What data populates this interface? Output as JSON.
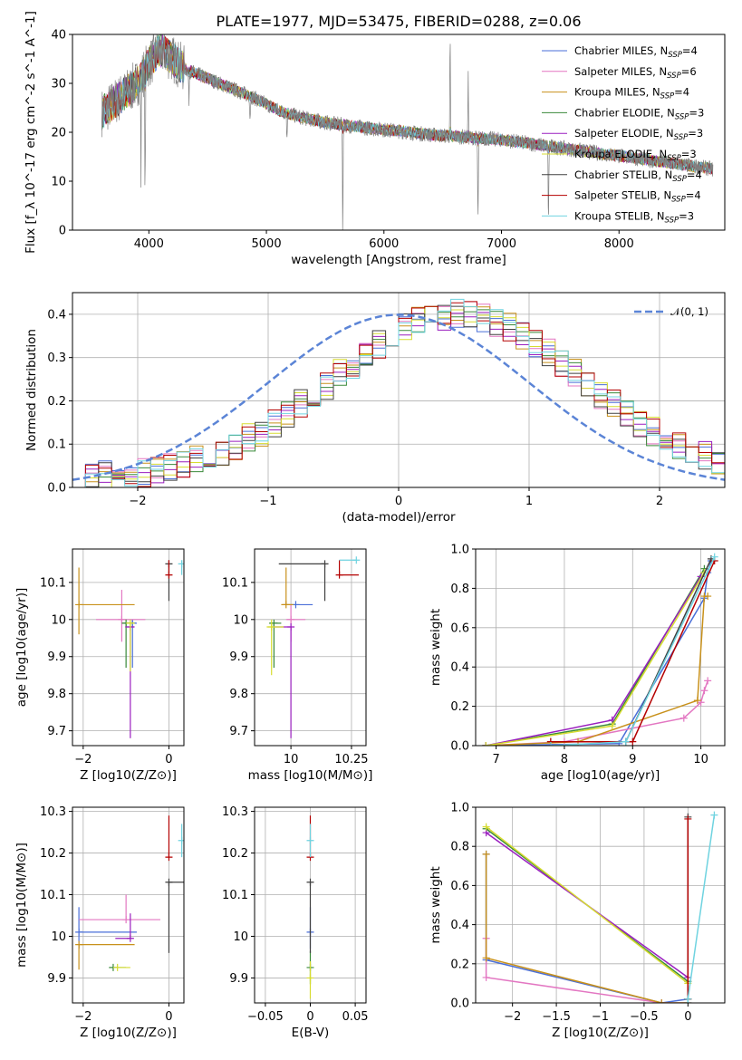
{
  "figure": {
    "title": "PLATE=1977, MJD=53475, FIBERID=0288, z=0.06"
  },
  "series": [
    {
      "name": "Chabrier MILES",
      "nssp": "4",
      "color": "#4a6fd8"
    },
    {
      "name": "Salpeter MILES",
      "nssp": "6",
      "color": "#e377c2"
    },
    {
      "name": "Kroupa MILES",
      "nssp": "4",
      "color": "#c8911b"
    },
    {
      "name": "Chabrier ELODIE",
      "nssp": "3",
      "color": "#3a8a3a"
    },
    {
      "name": "Salpeter ELODIE",
      "nssp": "3",
      "color": "#9a1fbf"
    },
    {
      "name": "Kroupa ELODIE",
      "nssp": "3",
      "color": "#d7dc30"
    },
    {
      "name": "Chabrier STELIB",
      "nssp": "4",
      "color": "#404040"
    },
    {
      "name": "Salpeter STELIB",
      "nssp": "4",
      "color": "#b40000"
    },
    {
      "name": "Kroupa STELIB",
      "nssp": "3",
      "color": "#6fd3e0"
    }
  ],
  "chart_data": [
    {
      "id": "spectrum",
      "type": "line",
      "xlabel": "wavelength [Angstrom, rest frame]",
      "ylabel": "Flux [f_λ 10^-17 erg cm^-2 s^-1 A^-1]",
      "xlim": [
        3350,
        8900
      ],
      "ylim": [
        0,
        40
      ],
      "xticks": [
        4000,
        5000,
        6000,
        7000,
        8000
      ],
      "yticks": [
        0,
        10,
        20,
        30,
        40
      ],
      "grid": false,
      "legend": "top-right",
      "data_color": "#808080",
      "continuum": [
        [
          3600,
          24
        ],
        [
          3750,
          27
        ],
        [
          3900,
          30
        ],
        [
          4000,
          34
        ],
        [
          4100,
          37
        ],
        [
          4200,
          35
        ],
        [
          4300,
          33
        ],
        [
          4500,
          31
        ],
        [
          4700,
          29
        ],
        [
          4900,
          27
        ],
        [
          5100,
          24.5
        ],
        [
          5300,
          23
        ],
        [
          5500,
          22
        ],
        [
          5800,
          21
        ],
        [
          6100,
          20.3
        ],
        [
          6400,
          19.5
        ],
        [
          6700,
          19
        ],
        [
          7000,
          18.5
        ],
        [
          7300,
          17.5
        ],
        [
          7600,
          16.5
        ],
        [
          7900,
          15.5
        ],
        [
          8200,
          14.5
        ],
        [
          8500,
          13.5
        ],
        [
          8800,
          12.5
        ]
      ],
      "features": [
        [
          3933,
          -20
        ],
        [
          3968,
          -28
        ],
        [
          4101,
          -8
        ],
        [
          4340,
          -7
        ],
        [
          4861,
          -5
        ],
        [
          5175,
          -6
        ],
        [
          5650,
          -24
        ],
        [
          6563,
          22
        ],
        [
          6717,
          12
        ],
        [
          6800,
          -20
        ],
        [
          7400,
          -18
        ]
      ]
    },
    {
      "id": "residuals",
      "type": "bar",
      "xlabel": "(data-model)/error",
      "ylabel": "Normed distribution",
      "xlim": [
        -2.5,
        2.5
      ],
      "ylim": [
        0,
        0.45
      ],
      "xticks": [
        -2,
        -1,
        0,
        1,
        2
      ],
      "yticks": [
        0.0,
        0.1,
        0.2,
        0.3,
        0.4
      ],
      "grid": true,
      "legend": "top-right",
      "gaussian_label": "𝒩(0, 1)",
      "gaussian_color": "#5b84d6",
      "bin_width": 0.1
    },
    {
      "id": "age-vs-Z",
      "type": "scatter",
      "xlabel": "Z [log10(Z/Z⊙)]",
      "ylabel": "age [log10(age/yr)]",
      "xlim": [
        -2.25,
        0.35
      ],
      "ylim": [
        9.66,
        10.19
      ],
      "xticks": [
        -2,
        0
      ],
      "yticks": [
        9.7,
        9.8,
        9.9,
        10.0,
        10.1
      ],
      "grid": true,
      "points": [
        {
          "series": 0,
          "x": -0.85,
          "y": 9.99,
          "ex": [
            0.15,
            0.1
          ],
          "ey": [
            0.12,
            0.01
          ]
        },
        {
          "series": 1,
          "x": -1.1,
          "y": 10.0,
          "ex": [
            0.6,
            0.55
          ],
          "ey": [
            0.06,
            0.08
          ]
        },
        {
          "series": 2,
          "x": -2.1,
          "y": 10.04,
          "ex": [
            0.02,
            1.3
          ],
          "ey": [
            0.08,
            0.1
          ]
        },
        {
          "series": 3,
          "x": -1.0,
          "y": 9.99,
          "ex": [
            0.1,
            0.2
          ],
          "ey": [
            0.12,
            0.0
          ]
        },
        {
          "series": 4,
          "x": -0.9,
          "y": 9.98,
          "ex": [
            0.12,
            0.1
          ],
          "ey": [
            0.3,
            0.0
          ]
        },
        {
          "series": 5,
          "x": -0.9,
          "y": 9.99,
          "ex": [
            0.1,
            0.1
          ],
          "ey": [
            0.13,
            0.0
          ]
        },
        {
          "series": 6,
          "x": 0.0,
          "y": 10.15,
          "ex": [
            0.0,
            0.0
          ],
          "ey": [
            0.1,
            0.0
          ]
        },
        {
          "series": 7,
          "x": 0.0,
          "y": 10.12,
          "ex": [
            0.0,
            0.02
          ],
          "ey": [
            0.0,
            0.04
          ]
        },
        {
          "series": 8,
          "x": 0.3,
          "y": 10.15,
          "ex": [
            0.02,
            0.02
          ],
          "ey": [
            0.03,
            0.01
          ]
        }
      ]
    },
    {
      "id": "age-vs-mass",
      "type": "scatter",
      "xlabel": "mass [log10(M/M⊙)]",
      "ylabel": "",
      "xlim": [
        9.85,
        10.31
      ],
      "ylim": [
        9.66,
        10.19
      ],
      "xticks": [
        10.0,
        10.25
      ],
      "yticks": [
        9.7,
        9.8,
        9.9,
        10.0,
        10.1
      ],
      "grid": true,
      "points": [
        {
          "series": 0,
          "x": 10.02,
          "y": 10.04,
          "ex": [
            0.05,
            0.07
          ],
          "ey": [
            0.0,
            0.0
          ]
        },
        {
          "series": 1,
          "x": 10.0,
          "y": 10.0,
          "ex": [
            0.02,
            0.06
          ],
          "ey": [
            0.06,
            0.04
          ]
        },
        {
          "series": 2,
          "x": 9.98,
          "y": 10.04,
          "ex": [
            0.02,
            0.03
          ],
          "ey": [
            0.0,
            0.1
          ]
        },
        {
          "series": 3,
          "x": 9.93,
          "y": 9.99,
          "ex": [
            0.02,
            0.03
          ],
          "ey": [
            0.12,
            0.0
          ]
        },
        {
          "series": 4,
          "x": 10.0,
          "y": 9.98,
          "ex": [
            0.07,
            0.0
          ],
          "ey": [
            0.3,
            0.0
          ]
        },
        {
          "series": 5,
          "x": 9.92,
          "y": 9.98,
          "ex": [
            0.02,
            0.05
          ],
          "ey": [
            0.13,
            0.02
          ]
        },
        {
          "series": 6,
          "x": 10.14,
          "y": 10.15,
          "ex": [
            0.19,
            0.0
          ],
          "ey": [
            0.1,
            0.0
          ]
        },
        {
          "series": 7,
          "x": 10.2,
          "y": 10.12,
          "ex": [
            0.0,
            0.08
          ],
          "ey": [
            0.0,
            0.04
          ]
        },
        {
          "series": 8,
          "x": 10.27,
          "y": 10.16,
          "ex": [
            0.07,
            0.0
          ],
          "ey": [
            0.0,
            0.0
          ]
        }
      ]
    },
    {
      "id": "weight-vs-age",
      "type": "line",
      "xlabel": "age [log10(age/yr)]",
      "ylabel": "mass weight",
      "xlim": [
        6.7,
        10.35
      ],
      "ylim": [
        0,
        1.0
      ],
      "xticks": [
        7,
        8,
        9,
        10
      ],
      "yticks": [
        0.0,
        0.2,
        0.4,
        0.6,
        0.8,
        1.0
      ],
      "grid": true,
      "lines": [
        {
          "series": 0,
          "x": [
            6.85,
            8.8,
            10.05,
            10.1,
            10.15
          ],
          "y": [
            0.0,
            0.01,
            0.75,
            0.88,
            0.94
          ]
        },
        {
          "series": 1,
          "x": [
            6.85,
            8.0,
            9.75,
            10.0,
            10.05,
            10.1
          ],
          "y": [
            0.0,
            0.02,
            0.14,
            0.22,
            0.28,
            0.33
          ]
        },
        {
          "series": 2,
          "x": [
            6.85,
            8.2,
            9.95,
            10.05,
            10.1
          ],
          "y": [
            0.0,
            0.02,
            0.23,
            0.76,
            0.76
          ]
        },
        {
          "series": 3,
          "x": [
            6.85,
            8.7,
            10.05
          ],
          "y": [
            0.0,
            0.11,
            0.9
          ]
        },
        {
          "series": 4,
          "x": [
            6.85,
            8.7,
            10.0
          ],
          "y": [
            0.0,
            0.13,
            0.86
          ]
        },
        {
          "series": 5,
          "x": [
            6.85,
            8.7,
            10.05
          ],
          "y": [
            0.0,
            0.1,
            0.88
          ]
        },
        {
          "series": 6,
          "x": [
            7.8,
            8.9,
            10.15
          ],
          "y": [
            0.02,
            0.02,
            0.95
          ]
        },
        {
          "series": 7,
          "x": [
            7.8,
            9.0,
            10.2
          ],
          "y": [
            0.02,
            0.02,
            0.94
          ]
        },
        {
          "series": 8,
          "x": [
            7.8,
            8.9,
            10.2
          ],
          "y": [
            0.0,
            0.02,
            0.96
          ]
        }
      ]
    },
    {
      "id": "mass-vs-Z",
      "type": "scatter",
      "xlabel": "Z [log10(Z/Z⊙)]",
      "ylabel": "mass [log10(M/M⊙)]",
      "xlim": [
        -2.25,
        0.35
      ],
      "ylim": [
        9.84,
        10.31
      ],
      "xticks": [
        -2,
        0
      ],
      "yticks": [
        9.9,
        10.0,
        10.1,
        10.2,
        10.3
      ],
      "grid": true,
      "points": [
        {
          "series": 0,
          "x": -2.1,
          "y": 10.01,
          "ex": [
            0.0,
            1.35
          ],
          "ey": [
            0.04,
            0.06
          ]
        },
        {
          "series": 1,
          "x": -1.0,
          "y": 10.04,
          "ex": [
            1.1,
            0.8
          ],
          "ey": [
            0.0,
            0.06
          ]
        },
        {
          "series": 2,
          "x": -2.1,
          "y": 9.98,
          "ex": [
            0.0,
            1.3
          ],
          "ey": [
            0.06,
            0.0
          ]
        },
        {
          "series": 3,
          "x": -1.3,
          "y": 9.925,
          "ex": [
            0.1,
            0.3
          ],
          "ey": [
            0.0,
            0.0
          ]
        },
        {
          "series": 4,
          "x": -0.9,
          "y": 9.995,
          "ex": [
            0.35,
            0.0
          ],
          "ey": [
            0.0,
            0.06
          ]
        },
        {
          "series": 5,
          "x": -1.2,
          "y": 9.925,
          "ex": [
            0.1,
            0.3
          ],
          "ey": [
            0.0,
            0.0
          ]
        },
        {
          "series": 6,
          "x": 0.0,
          "y": 10.13,
          "ex": [
            0.0,
            0.4
          ],
          "ey": [
            0.17,
            0.0
          ]
        },
        {
          "series": 7,
          "x": 0.0,
          "y": 10.19,
          "ex": [
            0.0,
            0.0
          ],
          "ey": [
            0.0,
            0.1
          ]
        },
        {
          "series": 8,
          "x": 0.3,
          "y": 10.23,
          "ex": [
            0.0,
            0.0
          ],
          "ey": [
            0.04,
            0.04
          ]
        }
      ]
    },
    {
      "id": "mass-vs-EBV",
      "type": "scatter",
      "xlabel": "E(B-V)",
      "ylabel": "",
      "xlim": [
        -0.062,
        0.062
      ],
      "ylim": [
        9.84,
        10.31
      ],
      "xticks": [
        -0.05,
        0.0,
        0.05
      ],
      "yticks": [
        9.9,
        10.0,
        10.1,
        10.2,
        10.3
      ],
      "grid": true,
      "points": [
        {
          "series": 0,
          "x": 0.0,
          "y": 10.01,
          "ex": [
            0,
            0
          ],
          "ey": [
            0.04,
            0.06
          ]
        },
        {
          "series": 3,
          "x": 0.0,
          "y": 9.925,
          "ex": [
            0,
            0
          ],
          "ey": [
            0.04,
            0.04
          ]
        },
        {
          "series": 5,
          "x": 0.0,
          "y": 9.9,
          "ex": [
            0,
            0
          ],
          "ey": [
            0.05,
            0.04
          ]
        },
        {
          "series": 6,
          "x": 0.0,
          "y": 10.13,
          "ex": [
            0,
            0
          ],
          "ey": [
            0.17,
            0.0
          ]
        },
        {
          "series": 7,
          "x": 0.0,
          "y": 10.19,
          "ex": [
            0,
            0
          ],
          "ey": [
            0.0,
            0.1
          ]
        },
        {
          "series": 8,
          "x": 0.0,
          "y": 10.23,
          "ex": [
            0,
            0
          ],
          "ey": [
            0.04,
            0.04
          ]
        }
      ]
    },
    {
      "id": "weight-vs-Z",
      "type": "line",
      "xlabel": "Z [log10(Z/Z⊙)]",
      "ylabel": "mass weight",
      "xlim": [
        -2.42,
        0.42
      ],
      "ylim": [
        0,
        1.0
      ],
      "xticks": [
        -2.0,
        -1.5,
        -1.0,
        -0.5,
        0.0
      ],
      "yticks": [
        0.0,
        0.2,
        0.4,
        0.6,
        0.8,
        1.0
      ],
      "grid": true,
      "lines": [
        {
          "series": 0,
          "x": [
            -2.3,
            -2.3,
            -0.3,
            0.0
          ],
          "y": [
            0.76,
            0.22,
            0.0,
            0.02
          ]
        },
        {
          "series": 1,
          "x": [
            -2.3,
            -2.3,
            -0.3,
            0.0,
            0.0
          ],
          "y": [
            0.33,
            0.13,
            0.0,
            0.0,
            0.02
          ]
        },
        {
          "series": 2,
          "x": [
            -2.3,
            -2.3,
            -0.3,
            0.0,
            0.0
          ],
          "y": [
            0.76,
            0.23,
            0.0,
            0.0,
            0.02
          ]
        },
        {
          "series": 3,
          "x": [
            -2.3,
            0.0
          ],
          "y": [
            0.89,
            0.11
          ]
        },
        {
          "series": 4,
          "x": [
            -2.3,
            0.0
          ],
          "y": [
            0.87,
            0.13
          ]
        },
        {
          "series": 5,
          "x": [
            -2.3,
            0.0
          ],
          "y": [
            0.9,
            0.1
          ]
        },
        {
          "series": 6,
          "x": [
            0.0,
            0.0
          ],
          "y": [
            0.02,
            0.95
          ]
        },
        {
          "series": 7,
          "x": [
            0.0,
            0.0
          ],
          "y": [
            0.02,
            0.94
          ]
        },
        {
          "series": 8,
          "x": [
            0.0,
            0.0,
            0.3
          ],
          "y": [
            0.0,
            0.02,
            0.96
          ]
        }
      ]
    }
  ]
}
